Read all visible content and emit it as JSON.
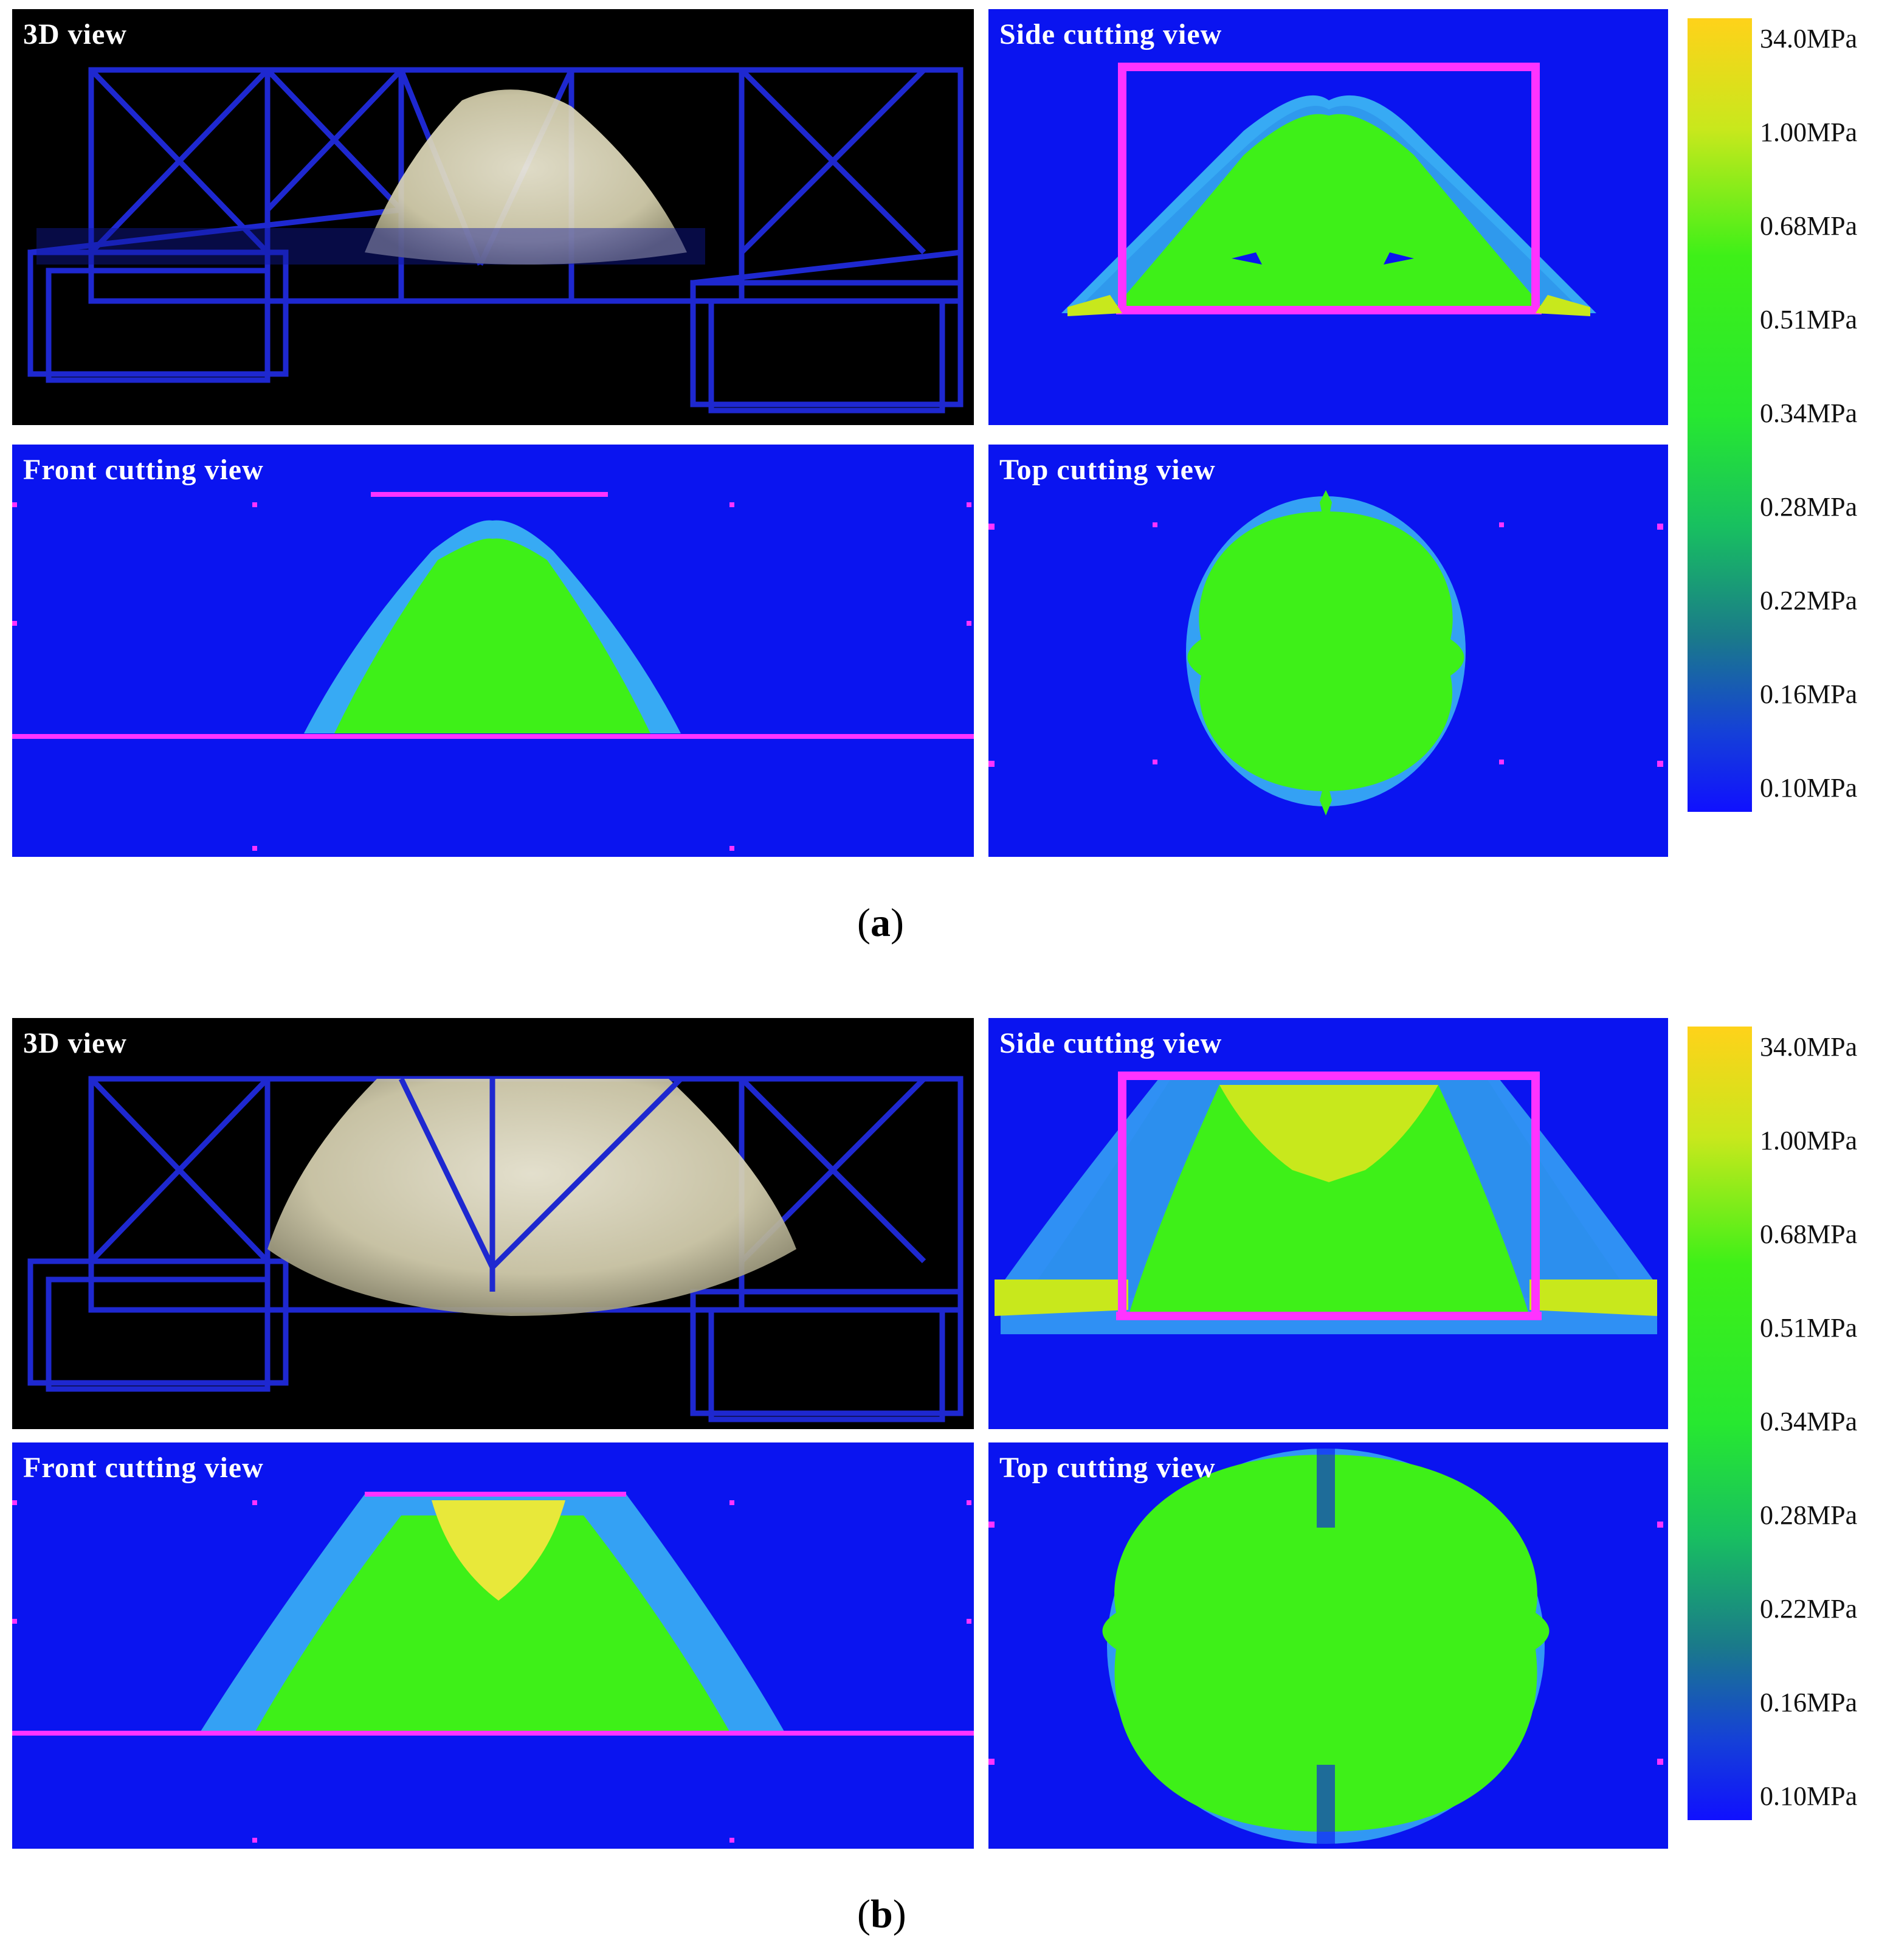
{
  "figure_a": {
    "label": "a",
    "panels": {
      "view3d": "3D view",
      "side": "Side cutting view",
      "front": "Front cutting view",
      "top": "Top cutting view"
    },
    "colorbar_ticks": [
      "34.0MPa",
      "1.00MPa",
      "0.68MPa",
      "0.51MPa",
      "0.34MPa",
      "0.28MPa",
      "0.22MPa",
      "0.16MPa",
      "0.10MPa"
    ]
  },
  "figure_b": {
    "label": "b",
    "panels": {
      "view3d": "3D view",
      "side": "Side cutting view",
      "front": "Front cutting view",
      "top": "Top cutting view"
    },
    "colorbar_ticks": [
      "34.0MPa",
      "1.00MPa",
      "0.68MPa",
      "0.51MPa",
      "0.34MPa",
      "0.28MPa",
      "0.22MPa",
      "0.16MPa",
      "0.10MPa"
    ]
  },
  "colors": {
    "background_field": "#0a14f0",
    "shock_green": "#3ef018",
    "halo_cyan": "#3fc4f5",
    "frame_magenta": "#ff33ff",
    "frame_blue": "#1f1fd6",
    "fireball_white": "#e8e2c8",
    "peak_yellow": "#e8e83a"
  }
}
